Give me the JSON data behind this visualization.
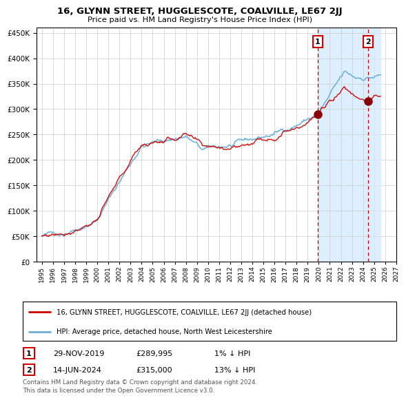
{
  "title": "16, GLYNN STREET, HUGGLESCOTE, COALVILLE, LE67 2JJ",
  "subtitle": "Price paid vs. HM Land Registry's House Price Index (HPI)",
  "legend_line1": "16, GLYNN STREET, HUGGLESCOTE, COALVILLE, LE67 2JJ (detached house)",
  "legend_line2": "HPI: Average price, detached house, North West Leicestershire",
  "annotation1_label": "1",
  "annotation1_date": "29-NOV-2019",
  "annotation1_price": "£289,995",
  "annotation1_hpi": "1% ↓ HPI",
  "annotation2_label": "2",
  "annotation2_date": "14-JUN-2024",
  "annotation2_price": "£315,000",
  "annotation2_hpi": "13% ↓ HPI",
  "footer": "Contains HM Land Registry data © Crown copyright and database right 2024.\nThis data is licensed under the Open Government Licence v3.0.",
  "hpi_line_color": "#6baed6",
  "price_line_color": "#cc0000",
  "marker_color": "#8b0000",
  "vline_color": "#cc0000",
  "grid_color": "#cccccc",
  "bg_color": "#ffffff",
  "shade_color": "#ddeeff",
  "ylim": [
    0,
    460000
  ],
  "yticks": [
    0,
    50000,
    100000,
    150000,
    200000,
    250000,
    300000,
    350000,
    400000,
    450000
  ],
  "t1": 2019.91,
  "t2": 2024.45,
  "price1": 289995,
  "price2": 315000,
  "start_year": 1995.0,
  "end_year": 2027.0
}
